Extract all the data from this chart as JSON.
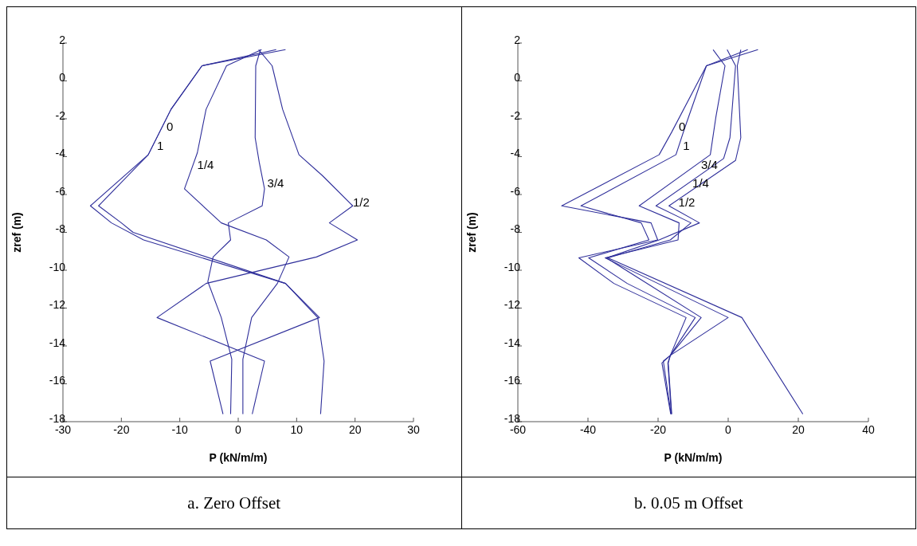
{
  "chart_data": [
    {
      "type": "line",
      "title": "a. Zero Offset",
      "xlabel": "P (kN/m/m)",
      "ylabel": "zref (m)",
      "xlim": [
        -30,
        30
      ],
      "ylim": [
        -18,
        2
      ],
      "xticks": [
        -30,
        -20,
        -10,
        0,
        10,
        20,
        30
      ],
      "yticks": [
        -18,
        -16,
        -14,
        -12,
        -10,
        -8,
        -6,
        -4,
        -2,
        0,
        2
      ],
      "grid": false,
      "line_style": "solid",
      "series": [
        {
          "name": "0",
          "color": "#2e2e9a",
          "x": [
            8.1,
            -6.2,
            -11.5,
            -15.4,
            -25.3,
            -21.7,
            -16.2,
            8.1,
            13.9,
            -4.8,
            -2.6
          ],
          "values": [
            1.65,
            0.8,
            -1.5,
            -3.9,
            -6.6,
            -7.5,
            -8.4,
            -10.7,
            -12.5,
            -14.8,
            -17.6
          ]
        },
        {
          "name": "1",
          "color": "#2e2e9a",
          "x": [
            6.5,
            -6.2,
            -11.5,
            -15.4,
            -23.9,
            -20,
            -18,
            8.1,
            13.6,
            14.7,
            14.1
          ],
          "values": [
            1.65,
            0.8,
            -1.5,
            -3.9,
            -6.6,
            -7.5,
            -8,
            -10.7,
            -12.5,
            -14.8,
            -17.6
          ]
        },
        {
          "name": "1/4",
          "color": "#2e2e9a",
          "x": [
            4,
            -2,
            -5.5,
            -7,
            -8.5,
            -9.2,
            -2.9,
            4.8,
            8.7,
            6.7,
            2.3,
            0.8,
            0.8
          ],
          "values": [
            1.65,
            0.8,
            -1.5,
            -3.8,
            -5.1,
            -5.7,
            -7.5,
            -8.4,
            -9.3,
            -10.7,
            -12.5,
            -14.7,
            -17.6
          ]
        },
        {
          "name": "3/4",
          "color": "#2e2e9a",
          "x": [
            3.8,
            3,
            2.9,
            3.6,
            4.5,
            4.1,
            -1.7,
            -1.3,
            -4.3,
            -5.2,
            -2.9,
            -1.1,
            -1.3
          ],
          "values": [
            1.65,
            0.8,
            -3,
            -4.3,
            -5.7,
            -6.6,
            -7.5,
            -8.4,
            -9.3,
            -10.6,
            -12.5,
            -14.7,
            -17.6
          ]
        },
        {
          "name": "1/2",
          "color": "#2e2e9a",
          "x": [
            3.5,
            5.8,
            7.6,
            10.4,
            14.4,
            19.6,
            15.6,
            20.4,
            13.4,
            -5.5,
            -13.9,
            4.5,
            2.4
          ],
          "values": [
            1.65,
            0.8,
            -1.5,
            -3.9,
            -5,
            -6.6,
            -7.5,
            -8.4,
            -9.3,
            -10.7,
            -12.5,
            -14.8,
            -17.6
          ]
        }
      ]
    },
    {
      "type": "line",
      "title": "b. 0.05 m Offset",
      "xlabel": "P (kN/m/m)",
      "ylabel": "zref (m)",
      "xlim": [
        -60,
        40
      ],
      "ylim": [
        -18,
        2
      ],
      "xticks": [
        -60,
        -40,
        -20,
        0,
        20,
        40
      ],
      "yticks": [
        -18,
        -16,
        -14,
        -12,
        -10,
        -8,
        -6,
        -4,
        -2,
        0,
        2
      ],
      "grid": false,
      "line_style": "solid",
      "series": [
        {
          "name": "0",
          "color": "#2e2e9a",
          "x": [
            8.5,
            -6.2,
            -16.1,
            -19.7,
            -47.5,
            -22,
            -20.1,
            -42.6,
            -32.6,
            -12,
            -16.5,
            -18.9,
            -16.4
          ],
          "values": [
            1.65,
            0.8,
            -2.7,
            -3.9,
            -6.6,
            -7.5,
            -8.4,
            -9.35,
            -10.7,
            -12.5,
            -14.5,
            -14.9,
            -17.6
          ]
        },
        {
          "name": "1",
          "color": "#2e2e9a",
          "x": [
            5.6,
            -6.2,
            -12.6,
            -14.9,
            -42,
            -24.8,
            -22.6,
            -39.8,
            -28.8,
            -9.4,
            -16.5,
            -18.5,
            -16.3
          ],
          "values": [
            1.65,
            0.8,
            -2.6,
            -3.9,
            -6.6,
            -7.5,
            -8.4,
            -9.35,
            -10.7,
            -12.5,
            -14.5,
            -14.8,
            -17.6
          ]
        },
        {
          "name": "3/4",
          "color": "#2e2e9a",
          "x": [
            -4.3,
            -0.9,
            -3.5,
            -5.1,
            -25.4,
            -14,
            -14.3,
            -35.1,
            0,
            -16.5,
            -17.2,
            -16.2
          ],
          "values": [
            1.65,
            0.8,
            -1.9,
            -3.9,
            -6.6,
            -7.5,
            -8.4,
            -9.35,
            -12.5,
            -14.5,
            -14.9,
            -17.6
          ]
        },
        {
          "name": "1/4",
          "color": "#2e2e9a",
          "x": [
            -0.3,
            2.1,
            0.5,
            -1.3,
            -20.6,
            -10.6,
            -16.5,
            -34.3,
            3.9,
            21.3
          ],
          "values": [
            1.65,
            0.8,
            -3,
            -4.1,
            -6.6,
            -7.5,
            -8.4,
            -9.35,
            -12.5,
            -17.6
          ]
        },
        {
          "name": "1/2",
          "color": "#2e2e9a",
          "x": [
            3.6,
            2.6,
            3.6,
            2.1,
            -16.9,
            -8.2,
            -19.7,
            -34.7,
            -7.7,
            -16.5,
            -17.1,
            -16.1
          ],
          "values": [
            1.65,
            0.8,
            -3,
            -4.2,
            -6.6,
            -7.5,
            -8.4,
            -9.35,
            -12.5,
            -14.5,
            -14.9,
            -17.6
          ]
        }
      ]
    }
  ]
}
